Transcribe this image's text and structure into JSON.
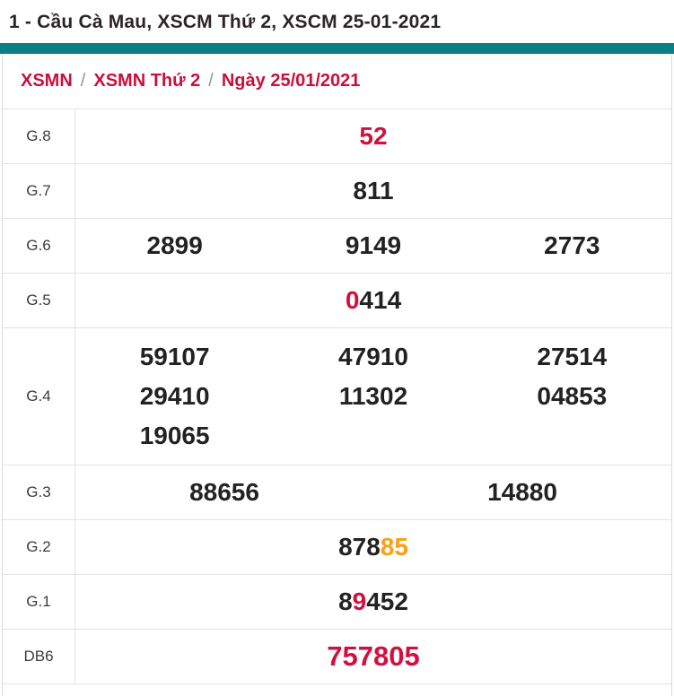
{
  "header": {
    "title": "1 - Cầu Cà Mau, XSCM Thứ 2, XSCM 25-01-2021"
  },
  "breadcrumb": {
    "separator": "/",
    "items": [
      {
        "label": "XSMN"
      },
      {
        "label": "XSMN Thứ 2"
      },
      {
        "label": "Ngày 25/01/2021"
      }
    ]
  },
  "colors": {
    "accent_teal": "#0a7f87",
    "breadcrumb_red": "#c9103c",
    "number_red": "#d2103f",
    "number_black": "#222222",
    "number_orange": "#f7a117",
    "label_gray": "#3b3b3b",
    "divider_gray": "#e3e3e3"
  },
  "table": {
    "rows": [
      {
        "label": "G.8",
        "cols": 1,
        "lines": [
          [
            [
              {
                "t": "52",
                "c": "red"
              }
            ]
          ]
        ]
      },
      {
        "label": "G.7",
        "cols": 1,
        "lines": [
          [
            [
              {
                "t": "811",
                "c": "black"
              }
            ]
          ]
        ]
      },
      {
        "label": "G.6",
        "cols": 3,
        "lines": [
          [
            [
              {
                "t": "2899",
                "c": "black"
              }
            ],
            [
              {
                "t": "9149",
                "c": "black"
              }
            ],
            [
              {
                "t": "2773",
                "c": "black"
              }
            ]
          ]
        ]
      },
      {
        "label": "G.5",
        "cols": 1,
        "lines": [
          [
            [
              {
                "t": "0",
                "c": "red"
              },
              {
                "t": "414",
                "c": "black"
              }
            ]
          ]
        ]
      },
      {
        "label": "G.4",
        "cols": 3,
        "tall": true,
        "lines": [
          [
            [
              {
                "t": "59107",
                "c": "black"
              }
            ],
            [
              {
                "t": "47910",
                "c": "black"
              }
            ],
            [
              {
                "t": "27514",
                "c": "black"
              }
            ]
          ],
          [
            [
              {
                "t": "29410",
                "c": "black"
              }
            ],
            [
              {
                "t": "11302",
                "c": "black"
              }
            ],
            [
              {
                "t": "04853",
                "c": "black"
              }
            ]
          ],
          [
            [
              {
                "t": "19065",
                "c": "black"
              }
            ],
            [],
            []
          ]
        ]
      },
      {
        "label": "G.3",
        "cols": 2,
        "lines": [
          [
            [
              {
                "t": "88656",
                "c": "black"
              }
            ],
            [
              {
                "t": "14880",
                "c": "black"
              }
            ]
          ]
        ]
      },
      {
        "label": "G.2",
        "cols": 1,
        "lines": [
          [
            [
              {
                "t": "878",
                "c": "black"
              },
              {
                "t": "85",
                "c": "orange"
              }
            ]
          ]
        ]
      },
      {
        "label": "G.1",
        "cols": 1,
        "lines": [
          [
            [
              {
                "t": "8",
                "c": "black"
              },
              {
                "t": "9",
                "c": "red"
              },
              {
                "t": "452",
                "c": "black"
              }
            ]
          ]
        ]
      },
      {
        "label": "DB6",
        "cols": 1,
        "big": true,
        "lines": [
          [
            [
              {
                "t": "757805",
                "c": "red"
              }
            ]
          ]
        ]
      }
    ]
  }
}
